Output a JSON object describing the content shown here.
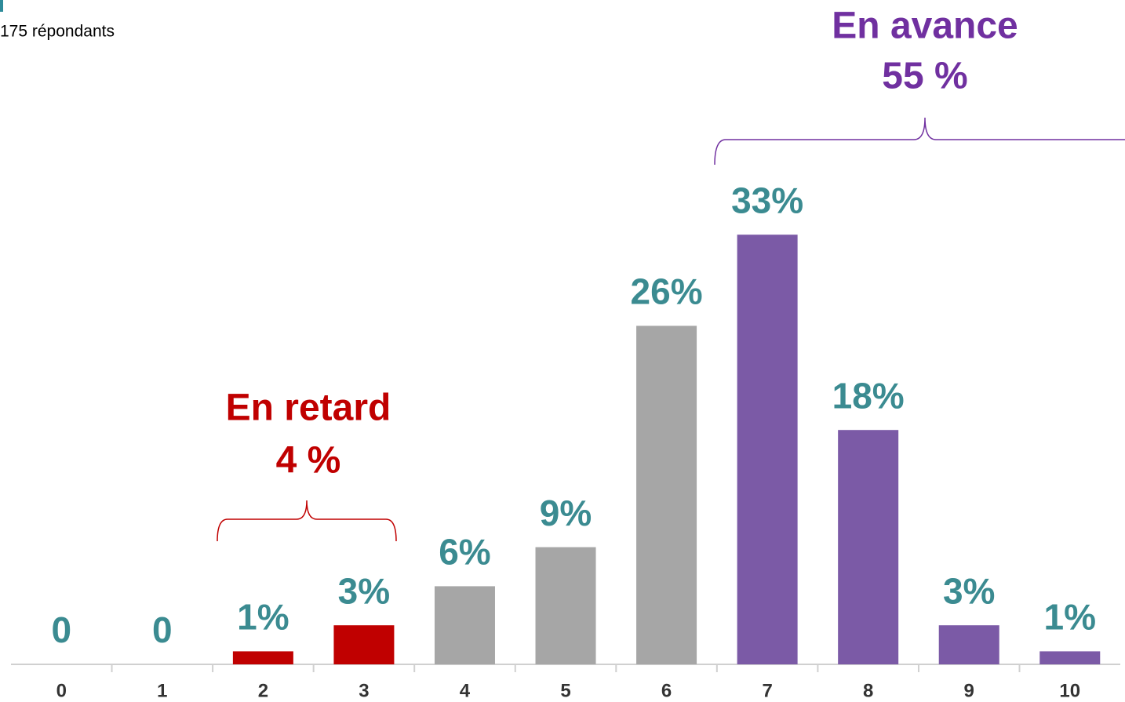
{
  "chart_data": {
    "type": "bar",
    "subtitle": "175 répondants",
    "categories": [
      "0",
      "1",
      "2",
      "3",
      "4",
      "5",
      "6",
      "7",
      "8",
      "9",
      "10"
    ],
    "values": [
      0,
      0,
      1,
      3,
      6,
      9,
      26,
      33,
      18,
      3,
      1
    ],
    "value_labels": [
      "0",
      "0",
      "1%",
      "3%",
      "6%",
      "9%",
      "26%",
      "33%",
      "18%",
      "3%",
      "1%"
    ],
    "colors": [
      "#a6a6a6",
      "#a6a6a6",
      "#c00000",
      "#c00000",
      "#a6a6a6",
      "#a6a6a6",
      "#a6a6a6",
      "#7b5aa6",
      "#7b5aa6",
      "#7b5aa6",
      "#7b5aa6"
    ],
    "annotations": [
      {
        "title": "En retard",
        "value": "4 %",
        "color": "#c00000"
      },
      {
        "title": "En avance",
        "value": "55 %",
        "color": "#7030a0"
      }
    ]
  }
}
